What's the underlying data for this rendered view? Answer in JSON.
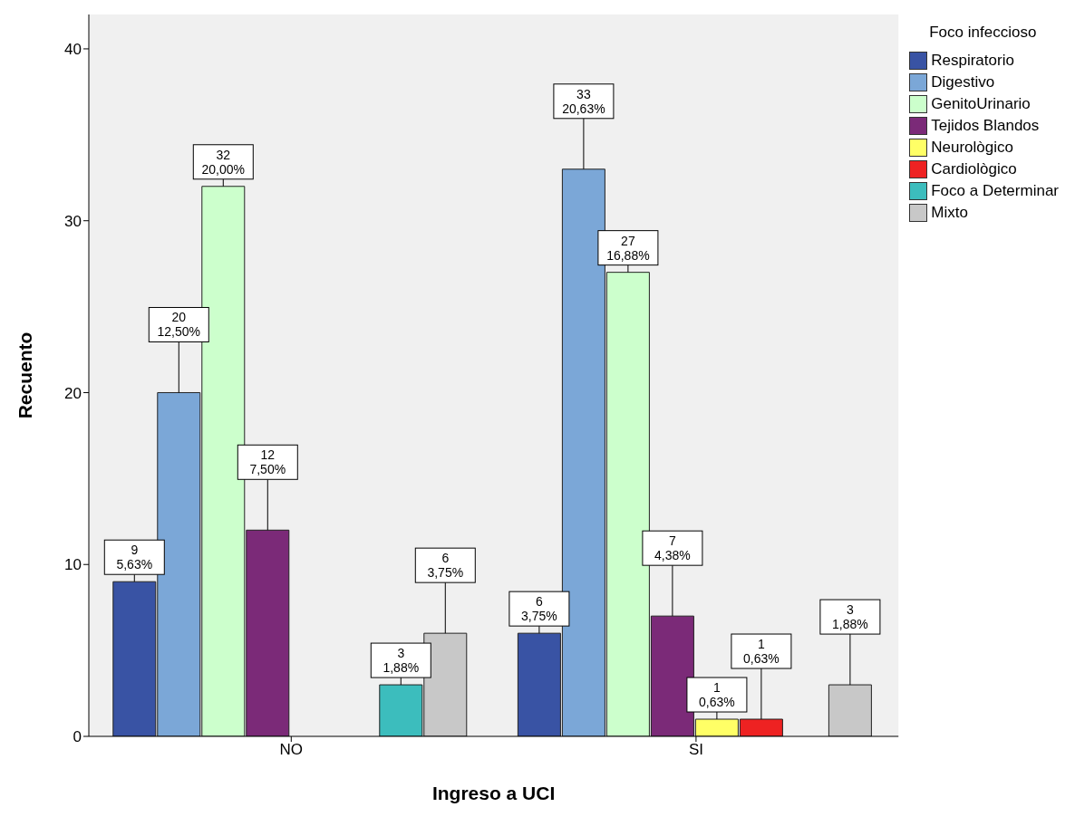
{
  "chart_data": {
    "type": "bar",
    "xlabel": "Ingreso a UCI",
    "ylabel": "Recuento",
    "legend_title": "Foco infeccioso",
    "categories": [
      "NO",
      "SI"
    ],
    "series": [
      {
        "name": "Respiratorio",
        "color": "#3953a4",
        "values": [
          9,
          6
        ],
        "value_labels": [
          "9\n5,63%",
          "6\n3,75%"
        ]
      },
      {
        "name": "Digestivo",
        "color": "#7ba7d7",
        "values": [
          20,
          33
        ],
        "value_labels": [
          "20\n12,50%",
          "33\n20,63%"
        ]
      },
      {
        "name": "GenitoUrinario",
        "color": "#ccffcc",
        "values": [
          32,
          27
        ],
        "value_labels": [
          "32\n20,00%",
          "27\n16,88%"
        ]
      },
      {
        "name": "Tejidos Blandos",
        "color": "#7b2a78",
        "values": [
          12,
          7
        ],
        "value_labels": [
          "12\n7,50%",
          "7\n4,38%"
        ]
      },
      {
        "name": "Neurològico",
        "color": "#ffff66",
        "values": [
          null,
          1
        ],
        "value_labels": [
          null,
          "1\n0,63%"
        ]
      },
      {
        "name": "Cardiològico",
        "color": "#ee2222",
        "values": [
          null,
          1
        ],
        "value_labels": [
          null,
          "1\n0,63%"
        ]
      },
      {
        "name": "Foco a Determinar",
        "color": "#3cbdbd",
        "values": [
          3,
          null
        ],
        "value_labels": [
          "3\n1,88%",
          null
        ]
      },
      {
        "name": "Mixto",
        "color": "#c8c8c8",
        "values": [
          6,
          3
        ],
        "value_labels": [
          "6\n3,75%",
          "3\n1,88%"
        ]
      }
    ],
    "ylim": [
      0,
      42
    ],
    "yticks": [
      0,
      10,
      20,
      30,
      40
    ],
    "grid": false,
    "legend": "right"
  }
}
